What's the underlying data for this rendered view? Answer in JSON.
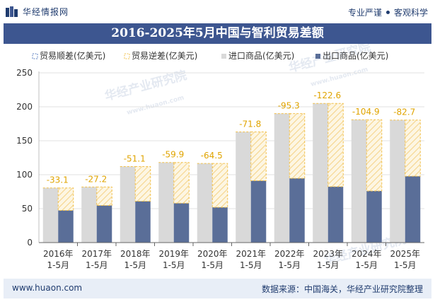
{
  "header": {
    "logo_text": "华经情报网",
    "tagline_left": "专业严谨",
    "tagline_right": "客观科学"
  },
  "chart_data": {
    "type": "bar",
    "title": "2016-2025年5月中国与智利贸易差额",
    "categories": [
      [
        "2016年",
        "1-5月"
      ],
      [
        "2017年",
        "1-5月"
      ],
      [
        "2018年",
        "1-5月"
      ],
      [
        "2019年",
        "1-5月"
      ],
      [
        "2020年",
        "1-5月"
      ],
      [
        "2021年",
        "1-5月"
      ],
      [
        "2022年",
        "1-5月"
      ],
      [
        "2023年",
        "1-5月"
      ],
      [
        "2024年",
        "1-5月"
      ],
      [
        "2025年",
        "1-5月"
      ]
    ],
    "series": [
      {
        "name": "贸易顺差(亿美元)",
        "values": [
          null,
          null,
          null,
          null,
          null,
          null,
          null,
          null,
          null,
          null
        ]
      },
      {
        "name": "贸易逆差(亿美元)",
        "values": [
          -33.1,
          -27.2,
          -51.1,
          -59.9,
          -64.5,
          -71.8,
          -95.3,
          -122.6,
          -104.9,
          -82.7
        ],
        "labels": [
          "-33.1",
          "-27.2",
          "-51.1",
          "-59.9",
          "-64.5",
          "-71.8",
          "-95.3",
          "-122.6",
          "-104.9",
          "-82.7"
        ]
      },
      {
        "name": "进口商品(亿美元)",
        "values": [
          80.5,
          81.9,
          112.0,
          118.0,
          116.5,
          163.0,
          190.0,
          205.0,
          181.0,
          180.5
        ]
      },
      {
        "name": "出口商品(亿美元)",
        "values": [
          47.4,
          54.7,
          60.9,
          58.1,
          52.0,
          91.2,
          94.7,
          82.4,
          76.1,
          97.8
        ]
      }
    ],
    "ylim": [
      0,
      250
    ],
    "yticks": [
      0,
      50,
      100,
      150,
      200,
      250
    ],
    "colors": {
      "surplus": "#5b7fc0",
      "deficit": "#f2c14e",
      "imports": "#d9d9d9",
      "exports": "#5a6e98"
    }
  },
  "watermark": {
    "text": "华经产业研究院",
    "url": "www.huaon.com"
  },
  "footer": {
    "website": "www.huaon.com",
    "source": "数据来源：中国海关，华经产业研究院整理"
  }
}
